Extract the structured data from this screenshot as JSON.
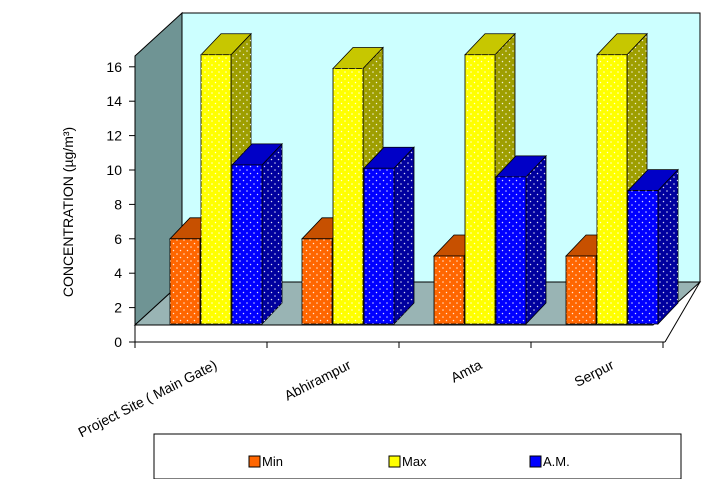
{
  "chart_data": {
    "type": "bar",
    "ylabel": "CONCENTRATION (µg/m³)",
    "ylim": [
      0,
      16
    ],
    "yticks": [
      "0",
      "2",
      "4",
      "6",
      "8",
      "10",
      "12",
      "14",
      "16"
    ],
    "categories": [
      "Project Site ( Main Gate)",
      "Abhirampur",
      "Amta",
      "Serpur"
    ],
    "series": [
      {
        "name": "Min",
        "values": [
          6,
          6,
          5,
          5
        ],
        "color": "#ff6600"
      },
      {
        "name": "Max",
        "values": [
          16.7,
          15.9,
          16.7,
          16.7
        ],
        "color": "#ffff00"
      },
      {
        "name": "A.M.",
        "values": [
          10.3,
          10.1,
          9.6,
          8.8
        ],
        "color": "#0000ff"
      }
    ],
    "wall_color": "#ccffff",
    "floor_color": "#99b4b4",
    "legend_position": "bottom"
  }
}
